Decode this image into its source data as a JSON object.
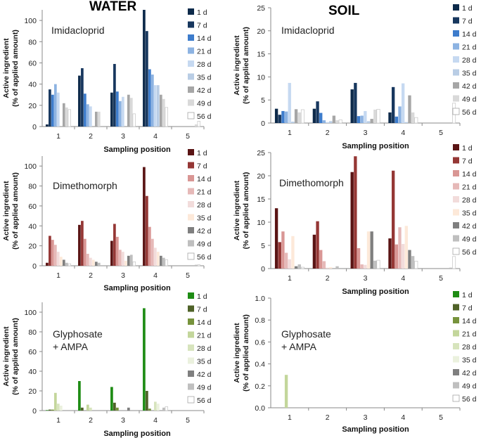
{
  "headers": {
    "water": "WATER",
    "soil": "SOIL"
  },
  "legend_labels": [
    "1 d",
    "7 d",
    "14 d",
    "21 d",
    "28 d",
    "35 d",
    "42 d",
    "49 d",
    "56 d"
  ],
  "palettes": {
    "blue": [
      "#0d2a4a",
      "#17375e",
      "#3d7ccc",
      "#8db3e2",
      "#c6d9f1",
      "#b9cde5",
      "#a6a6a6",
      "#d9d9d9",
      "#ffffff"
    ],
    "red": [
      "#5a1414",
      "#953735",
      "#d99694",
      "#e6b9b8",
      "#f2dcdb",
      "#fde9d9",
      "#7f7f7f",
      "#bfbfbf",
      "#ffffff"
    ],
    "green": [
      "#1e8c14",
      "#4f6228",
      "#77933c",
      "#c3d69b",
      "#d7e4bd",
      "#ebf1de",
      "#7f7f7f",
      "#bfbfbf",
      "#ffffff"
    ]
  },
  "chart_data": [
    {
      "type": "bar",
      "panel": "water",
      "palette": "blue",
      "title": "Imidacloprid",
      "xlabel": "Sampling position",
      "ylabel": [
        "Active ingredient",
        "(% of applied amount)"
      ],
      "categories": [
        "1",
        "2",
        "3",
        "4",
        "5"
      ],
      "ylim": [
        0,
        110
      ],
      "yticks": [
        0,
        20,
        40,
        60,
        80,
        100
      ],
      "series": [
        {
          "name": "1 d",
          "values": [
            2,
            48,
            32,
            110,
            0
          ]
        },
        {
          "name": "7 d",
          "values": [
            35,
            55,
            59,
            90,
            0
          ]
        },
        {
          "name": "14 d",
          "values": [
            30,
            31,
            33,
            54,
            0
          ]
        },
        {
          "name": "21 d",
          "values": [
            40,
            21,
            24,
            49,
            0
          ]
        },
        {
          "name": "28 d",
          "values": [
            32,
            19,
            28,
            39,
            0
          ]
        },
        {
          "name": "35 d",
          "values": [
            0,
            0,
            0,
            39,
            0
          ]
        },
        {
          "name": "42 d",
          "values": [
            22,
            14,
            30,
            30,
            0
          ]
        },
        {
          "name": "49 d",
          "values": [
            18,
            14,
            27,
            26,
            2
          ]
        },
        {
          "name": "56 d",
          "values": [
            16,
            0,
            12,
            18,
            5
          ]
        }
      ]
    },
    {
      "type": "bar",
      "panel": "soil",
      "palette": "blue",
      "title": "Imidacloprid",
      "xlabel": "Sampling position",
      "ylabel": [
        "Active ingredient",
        "(% of applied amount)"
      ],
      "categories": [
        "1",
        "2",
        "3",
        "4",
        "5"
      ],
      "ylim": [
        0,
        25
      ],
      "yticks": [
        0,
        5,
        10,
        15,
        20,
        25
      ],
      "series": [
        {
          "name": "1 d",
          "values": [
            3.1,
            3.1,
            7.3,
            2.3,
            0
          ]
        },
        {
          "name": "7 d",
          "values": [
            1.8,
            4.7,
            8.7,
            7.8,
            0
          ]
        },
        {
          "name": "14 d",
          "values": [
            2.6,
            2.2,
            1.5,
            1.4,
            0
          ]
        },
        {
          "name": "21 d",
          "values": [
            2.5,
            0.6,
            1.6,
            3.6,
            0
          ]
        },
        {
          "name": "28 d",
          "values": [
            8.7,
            0.2,
            2.6,
            8.6,
            0
          ]
        },
        {
          "name": "35 d",
          "values": [
            0.3,
            0.4,
            0.4,
            0.2,
            0
          ]
        },
        {
          "name": "42 d",
          "values": [
            3.0,
            1.6,
            0.9,
            6.0,
            0
          ]
        },
        {
          "name": "49 d",
          "values": [
            2.3,
            0.6,
            2.9,
            2.3,
            0
          ]
        },
        {
          "name": "56 d",
          "values": [
            2.9,
            0.7,
            3.0,
            1.2,
            4.3
          ]
        }
      ]
    },
    {
      "type": "bar",
      "panel": "water",
      "palette": "red",
      "title": "Dimethomorph",
      "xlabel": "Sampling position",
      "ylabel": [
        "Active ingredient",
        "(% of applied amount)"
      ],
      "categories": [
        "1",
        "2",
        "3",
        "4",
        "5"
      ],
      "ylim": [
        0,
        110
      ],
      "yticks": [
        0,
        20,
        40,
        60,
        80,
        100
      ],
      "series": [
        {
          "name": "1 d",
          "values": [
            3,
            41,
            25,
            99,
            0
          ]
        },
        {
          "name": "7 d",
          "values": [
            30,
            45,
            42,
            70,
            0
          ]
        },
        {
          "name": "14 d",
          "values": [
            26,
            27,
            29,
            39,
            0
          ]
        },
        {
          "name": "21 d",
          "values": [
            21,
            12,
            16,
            27,
            0
          ]
        },
        {
          "name": "28 d",
          "values": [
            14,
            8,
            14,
            18,
            0
          ]
        },
        {
          "name": "35 d",
          "values": [
            9,
            6,
            5,
            14,
            0
          ]
        },
        {
          "name": "42 d",
          "values": [
            6,
            4,
            10,
            10,
            0
          ]
        },
        {
          "name": "49 d",
          "values": [
            3,
            3,
            11,
            8,
            1
          ]
        },
        {
          "name": "56 d",
          "values": [
            2,
            0,
            4,
            6,
            1
          ]
        }
      ]
    },
    {
      "type": "bar",
      "panel": "soil",
      "palette": "red",
      "title": "Dimethomorph",
      "xlabel": "Sampling position",
      "ylabel": [
        "Active ingredient",
        "(% of applied amount)"
      ],
      "categories": [
        "1",
        "2",
        "3",
        "4",
        "5"
      ],
      "ylim": [
        0,
        25
      ],
      "yticks": [
        0,
        5,
        10,
        15,
        20,
        25
      ],
      "series": [
        {
          "name": "1 d",
          "values": [
            13,
            7.3,
            20.8,
            6.5,
            0
          ]
        },
        {
          "name": "7 d",
          "values": [
            5.7,
            10.2,
            24.2,
            21.1,
            0
          ]
        },
        {
          "name": "14 d",
          "values": [
            8,
            4,
            4.4,
            5.2,
            0
          ]
        },
        {
          "name": "21 d",
          "values": [
            3.4,
            1.6,
            0.9,
            8.9,
            0
          ]
        },
        {
          "name": "28 d",
          "values": [
            2,
            0.2,
            0.8,
            5.3,
            0
          ]
        },
        {
          "name": "35 d",
          "values": [
            7,
            0.3,
            8,
            9.2,
            0
          ]
        },
        {
          "name": "42 d",
          "values": [
            0.5,
            0,
            8,
            4,
            0
          ]
        },
        {
          "name": "49 d",
          "values": [
            0.9,
            0.5,
            1.7,
            2.7,
            0.2
          ]
        },
        {
          "name": "56 d",
          "values": [
            0.3,
            0,
            1.8,
            1.6,
            2.6
          ]
        }
      ]
    },
    {
      "type": "bar",
      "panel": "water",
      "palette": "green",
      "title": "Glyphosate\n+ AMPA",
      "xlabel": "Sampling position",
      "ylabel": [
        "Active ingredient",
        "(% of applied amount)"
      ],
      "categories": [
        "1",
        "2",
        "3",
        "4",
        "5"
      ],
      "ylim": [
        0,
        110
      ],
      "yticks": [
        0,
        20,
        40,
        60,
        80,
        100
      ],
      "series": [
        {
          "name": "1 d",
          "values": [
            0.5,
            30,
            24,
            104,
            0
          ]
        },
        {
          "name": "7 d",
          "values": [
            1,
            3,
            8,
            20,
            0
          ]
        },
        {
          "name": "14 d",
          "values": [
            1,
            0,
            3,
            2,
            0
          ]
        },
        {
          "name": "21 d",
          "values": [
            18,
            6,
            0,
            0,
            0
          ]
        },
        {
          "name": "28 d",
          "values": [
            7,
            3,
            0,
            9,
            0
          ]
        },
        {
          "name": "35 d",
          "values": [
            5,
            0,
            0,
            7,
            0
          ]
        },
        {
          "name": "42 d",
          "values": [
            0,
            0,
            3,
            0,
            0
          ]
        },
        {
          "name": "49 d",
          "values": [
            0,
            0,
            0,
            3,
            0
          ]
        },
        {
          "name": "56 d",
          "values": [
            0,
            0,
            0,
            4,
            0
          ]
        }
      ]
    },
    {
      "type": "bar",
      "panel": "soil",
      "palette": "green",
      "title": "Glyphosate\n+ AMPA",
      "xlabel": "Sampling position",
      "ylabel": [
        "Active ingredient",
        "(% of applied amount)"
      ],
      "categories": [
        "1",
        "2",
        "3",
        "4",
        "5"
      ],
      "ylim": [
        0,
        1.0
      ],
      "yticks": [
        0.0,
        0.2,
        0.4,
        0.6,
        0.8,
        1.0
      ],
      "series": [
        {
          "name": "1 d",
          "values": [
            0,
            0,
            0,
            0,
            0
          ]
        },
        {
          "name": "7 d",
          "values": [
            0,
            0,
            0,
            0,
            0
          ]
        },
        {
          "name": "14 d",
          "values": [
            0,
            0,
            0,
            0,
            0
          ]
        },
        {
          "name": "21 d",
          "values": [
            0.3,
            0,
            0,
            0,
            0
          ]
        },
        {
          "name": "28 d",
          "values": [
            0,
            0,
            0,
            0,
            0
          ]
        },
        {
          "name": "35 d",
          "values": [
            0,
            0,
            0,
            0,
            0
          ]
        },
        {
          "name": "42 d",
          "values": [
            0,
            0,
            0,
            0,
            0
          ]
        },
        {
          "name": "49 d",
          "values": [
            0,
            0,
            0,
            0,
            0
          ]
        },
        {
          "name": "56 d",
          "values": [
            0,
            0,
            0,
            0,
            0
          ]
        }
      ]
    }
  ]
}
